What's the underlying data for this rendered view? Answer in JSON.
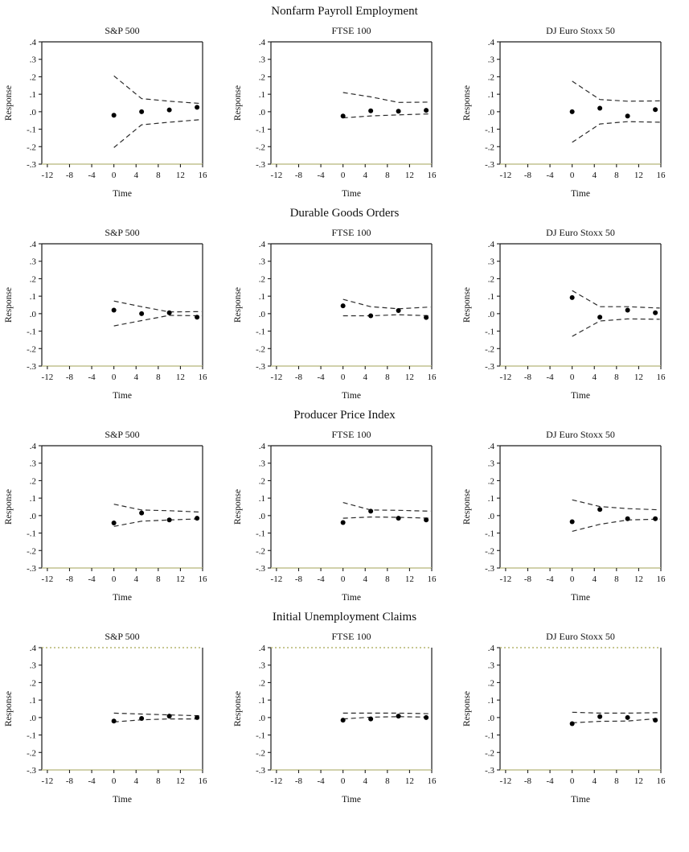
{
  "chart_data": {
    "type": "scatter",
    "description": "4x3 grid of impulse-response plots: dots with dashed confidence bands",
    "xlabel": "Time",
    "ylabel": "Response",
    "xlim": [
      -13,
      16
    ],
    "ylim": [
      -0.3,
      0.4
    ],
    "grid": false,
    "legend": "none",
    "x_tick_values": [
      -12,
      -8,
      -4,
      0,
      4,
      8,
      12,
      16
    ],
    "x_tick_labels": [
      "-12",
      "-8",
      "-4",
      "0",
      "4",
      "8",
      "12",
      "16"
    ],
    "y_tick_values": [
      0.4,
      0.3,
      0.2,
      0.1,
      0.0,
      -0.1,
      -0.2,
      -0.3
    ],
    "y_tick_labels": [
      ".4",
      ".3",
      ".2",
      ".1",
      ".0",
      "-.1",
      "-.2",
      "-.3"
    ],
    "dot_x": [
      0,
      5,
      10,
      15
    ],
    "band_x": [
      0,
      5,
      10,
      15.8
    ],
    "rows": [
      {
        "title": "Nonfarm Payroll Employment",
        "charts": [
          {
            "title": "S&P 500",
            "dots": [
              -0.02,
              0.0,
              0.01,
              0.025
            ],
            "upper": [
              0.205,
              0.075,
              0.06,
              0.047
            ],
            "lower": [
              -0.205,
              -0.075,
              -0.06,
              -0.045
            ]
          },
          {
            "title": "FTSE 100",
            "dots": [
              -0.025,
              0.005,
              0.003,
              0.008
            ],
            "upper": [
              0.11,
              0.085,
              0.053,
              0.055
            ],
            "lower": [
              -0.035,
              -0.024,
              -0.018,
              -0.012
            ]
          },
          {
            "title": "DJ Euro Stoxx 50",
            "dots": [
              0.0,
              0.02,
              -0.025,
              0.012
            ],
            "upper": [
              0.175,
              0.07,
              0.06,
              0.062
            ],
            "lower": [
              -0.175,
              -0.07,
              -0.057,
              -0.06
            ]
          }
        ]
      },
      {
        "title": "Durable Goods Orders",
        "charts": [
          {
            "title": "S&P 500",
            "dots": [
              0.02,
              0.0,
              0.005,
              -0.02
            ],
            "upper": [
              0.072,
              0.04,
              0.01,
              0.012
            ],
            "lower": [
              -0.07,
              -0.04,
              -0.01,
              -0.012
            ]
          },
          {
            "title": "FTSE 100",
            "dots": [
              0.045,
              -0.012,
              0.018,
              -0.022
            ],
            "upper": [
              0.082,
              0.04,
              0.028,
              0.038
            ],
            "lower": [
              -0.012,
              -0.012,
              -0.006,
              -0.012
            ]
          },
          {
            "title": "DJ Euro Stoxx 50",
            "dots": [
              0.092,
              -0.02,
              0.02,
              0.005
            ],
            "upper": [
              0.132,
              0.04,
              0.04,
              0.032
            ],
            "lower": [
              -0.13,
              -0.042,
              -0.03,
              -0.032
            ]
          }
        ]
      },
      {
        "title": "Producer Price Index",
        "charts": [
          {
            "title": "S&P 500",
            "dots": [
              -0.042,
              0.015,
              -0.025,
              -0.015
            ],
            "upper": [
              0.065,
              0.032,
              0.028,
              0.02
            ],
            "lower": [
              -0.062,
              -0.032,
              -0.025,
              -0.018
            ]
          },
          {
            "title": "FTSE 100",
            "dots": [
              -0.04,
              0.025,
              -0.015,
              -0.025
            ],
            "upper": [
              0.075,
              0.032,
              0.03,
              0.025
            ],
            "lower": [
              -0.015,
              -0.008,
              -0.01,
              -0.015
            ]
          },
          {
            "title": "DJ Euro Stoxx 50",
            "dots": [
              -0.035,
              0.035,
              -0.018,
              -0.018
            ],
            "upper": [
              0.09,
              0.052,
              0.04,
              0.033
            ],
            "lower": [
              -0.09,
              -0.05,
              -0.025,
              -0.02
            ]
          }
        ]
      },
      {
        "title": "Initial Unemployment Claims",
        "charts": [
          {
            "title": "S&P 500",
            "dots": [
              -0.02,
              -0.005,
              0.008,
              0.0
            ],
            "upper": [
              0.025,
              0.02,
              0.015,
              0.01
            ],
            "lower": [
              -0.025,
              -0.013,
              -0.008,
              -0.008
            ]
          },
          {
            "title": "FTSE 100",
            "dots": [
              -0.015,
              -0.008,
              0.008,
              0.0
            ],
            "upper": [
              0.025,
              0.025,
              0.025,
              0.022
            ],
            "lower": [
              -0.008,
              0.002,
              0.005,
              0.002
            ]
          },
          {
            "title": "DJ Euro Stoxx 50",
            "dots": [
              -0.035,
              0.005,
              0.0,
              -0.015
            ],
            "upper": [
              0.03,
              0.025,
              0.025,
              0.028
            ],
            "lower": [
              -0.03,
              -0.022,
              -0.02,
              -0.005
            ]
          }
        ]
      }
    ]
  },
  "style": {
    "frame_color": "#1c1c1c",
    "baseline_color": "#c2c28f",
    "row4_top_color": "#b5b56e",
    "band_color": "#2b2b2b",
    "dot_color": "#000000",
    "tick_color": "#1c1c1c"
  }
}
